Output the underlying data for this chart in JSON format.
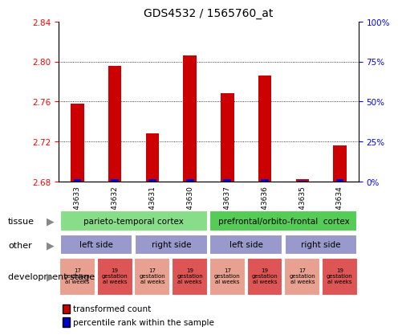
{
  "title": "GDS4532 / 1565760_at",
  "samples": [
    "GSM543633",
    "GSM543632",
    "GSM543631",
    "GSM543630",
    "GSM543637",
    "GSM543636",
    "GSM543635",
    "GSM543634"
  ],
  "transformed_count": [
    2.758,
    2.796,
    2.728,
    2.806,
    2.768,
    2.786,
    2.682,
    2.716
  ],
  "percentile_values": [
    3,
    3,
    3,
    3,
    3,
    3,
    1,
    3
  ],
  "y_min": 2.68,
  "y_max": 2.84,
  "y_ticks": [
    2.68,
    2.72,
    2.76,
    2.8,
    2.84
  ],
  "y2_ticks": [
    0,
    25,
    50,
    75,
    100
  ],
  "bar_color": "#cc0000",
  "percentile_color": "#0000cc",
  "tissue_groups": [
    {
      "label": "parieto-temporal cortex",
      "span": [
        0,
        4
      ],
      "color": "#88dd88"
    },
    {
      "label": "prefrontal/orbito-frontal  cortex",
      "span": [
        4,
        8
      ],
      "color": "#55cc55"
    }
  ],
  "other_groups": [
    {
      "label": "left side",
      "span": [
        0,
        2
      ],
      "color": "#9999cc"
    },
    {
      "label": "right side",
      "span": [
        2,
        4
      ],
      "color": "#9999cc"
    },
    {
      "label": "left side",
      "span": [
        4,
        6
      ],
      "color": "#9999cc"
    },
    {
      "label": "right side",
      "span": [
        6,
        8
      ],
      "color": "#9999cc"
    }
  ],
  "dev_cells": [
    {
      "label": "17\ngestation\nal weeks",
      "color": "#e8a090"
    },
    {
      "label": "19\ngestation\nal weeks",
      "color": "#dd5555"
    },
    {
      "label": "17\ngestation\nal weeks",
      "color": "#e8a090"
    },
    {
      "label": "19\ngestation\nal weeks",
      "color": "#dd5555"
    },
    {
      "label": "17\ngestation\nal weeks",
      "color": "#e8a090"
    },
    {
      "label": "19\ngestation\nal weeks",
      "color": "#dd5555"
    },
    {
      "label": "17\ngestation\nal weeks",
      "color": "#e8a090"
    },
    {
      "label": "19\ngestation\nal weeks",
      "color": "#dd5555"
    }
  ]
}
